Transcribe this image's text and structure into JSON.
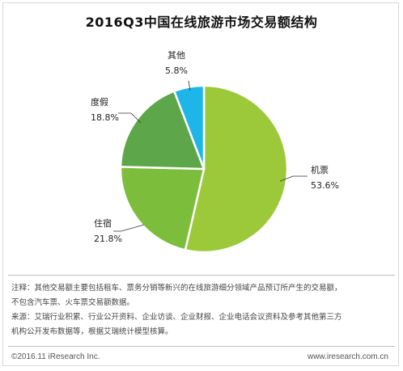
{
  "chart_data": {
    "type": "pie",
    "title": "2016Q3中国在线旅游市场交易额结构",
    "slices": [
      {
        "label": "机票",
        "value": 53.6,
        "display": "53.6%",
        "color": "#9bc93a"
      },
      {
        "label": "住宿",
        "value": 21.8,
        "display": "21.8%",
        "color": "#7cbd3c"
      },
      {
        "label": "度假",
        "value": 18.8,
        "display": "18.8%",
        "color": "#5da64a"
      },
      {
        "label": "其他",
        "value": 5.8,
        "display": "5.8%",
        "color": "#1eb6e8"
      }
    ]
  },
  "notes": {
    "line1": "注释：其他交易额主要包括租车、票务分销等新兴的在线旅游细分领域产品预订所产生的交易额，",
    "line2": "不包含汽车票、火车票交易额数据。",
    "line3": "来源：艾瑞行业积累、行业公开资料、企业访谈、企业财报、企业电话会议资料及参考其他第三方",
    "line4": "机构公开发布数据等，根据艾瑞统计模型核算。"
  },
  "footer": {
    "copyright": "©2016.11 iResearch Inc.",
    "website": "www.iresearch.com.cn"
  }
}
